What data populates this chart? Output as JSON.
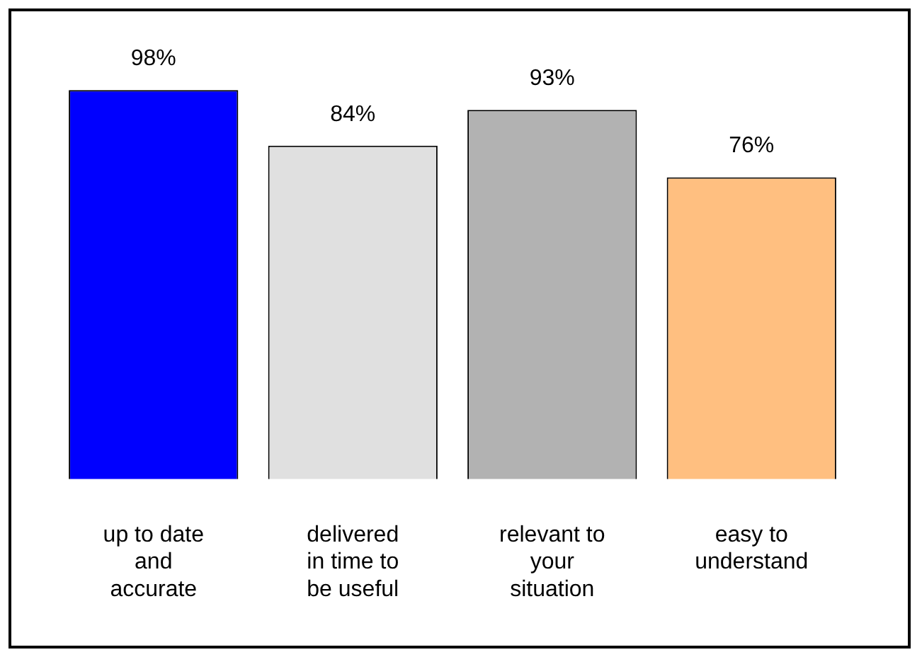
{
  "chart_data": {
    "type": "bar",
    "categories": [
      "up to date and accurate",
      "delivered in time to be useful",
      "relevant to your situation",
      "easy to understand"
    ],
    "values": [
      98,
      84,
      93,
      76
    ],
    "colors": [
      "#0000ff",
      "#e0e0e0",
      "#b2b2b2",
      "#ffbf80"
    ],
    "value_labels": [
      "98%",
      "84%",
      "93%",
      "76%"
    ],
    "grid": false,
    "legend": false
  }
}
